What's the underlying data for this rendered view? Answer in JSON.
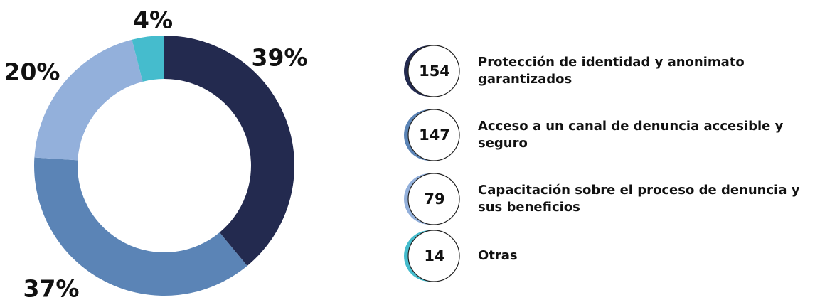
{
  "chart_data": {
    "type": "donut",
    "categories": [
      "Protección de identidad y anonimato garantizados",
      "Acceso a un canal de denuncia accesible y seguro",
      "Capacitación sobre el proceso de denuncia y sus beneficios",
      "Otras"
    ],
    "values": [
      39,
      37,
      20,
      4
    ],
    "value_labels": [
      "39%",
      "37%",
      "20%",
      "4%"
    ],
    "counts": [
      154,
      147,
      79,
      14
    ],
    "colors": [
      "#232a4f",
      "#5b84b6",
      "#93b0db",
      "#45bccd"
    ]
  }
}
